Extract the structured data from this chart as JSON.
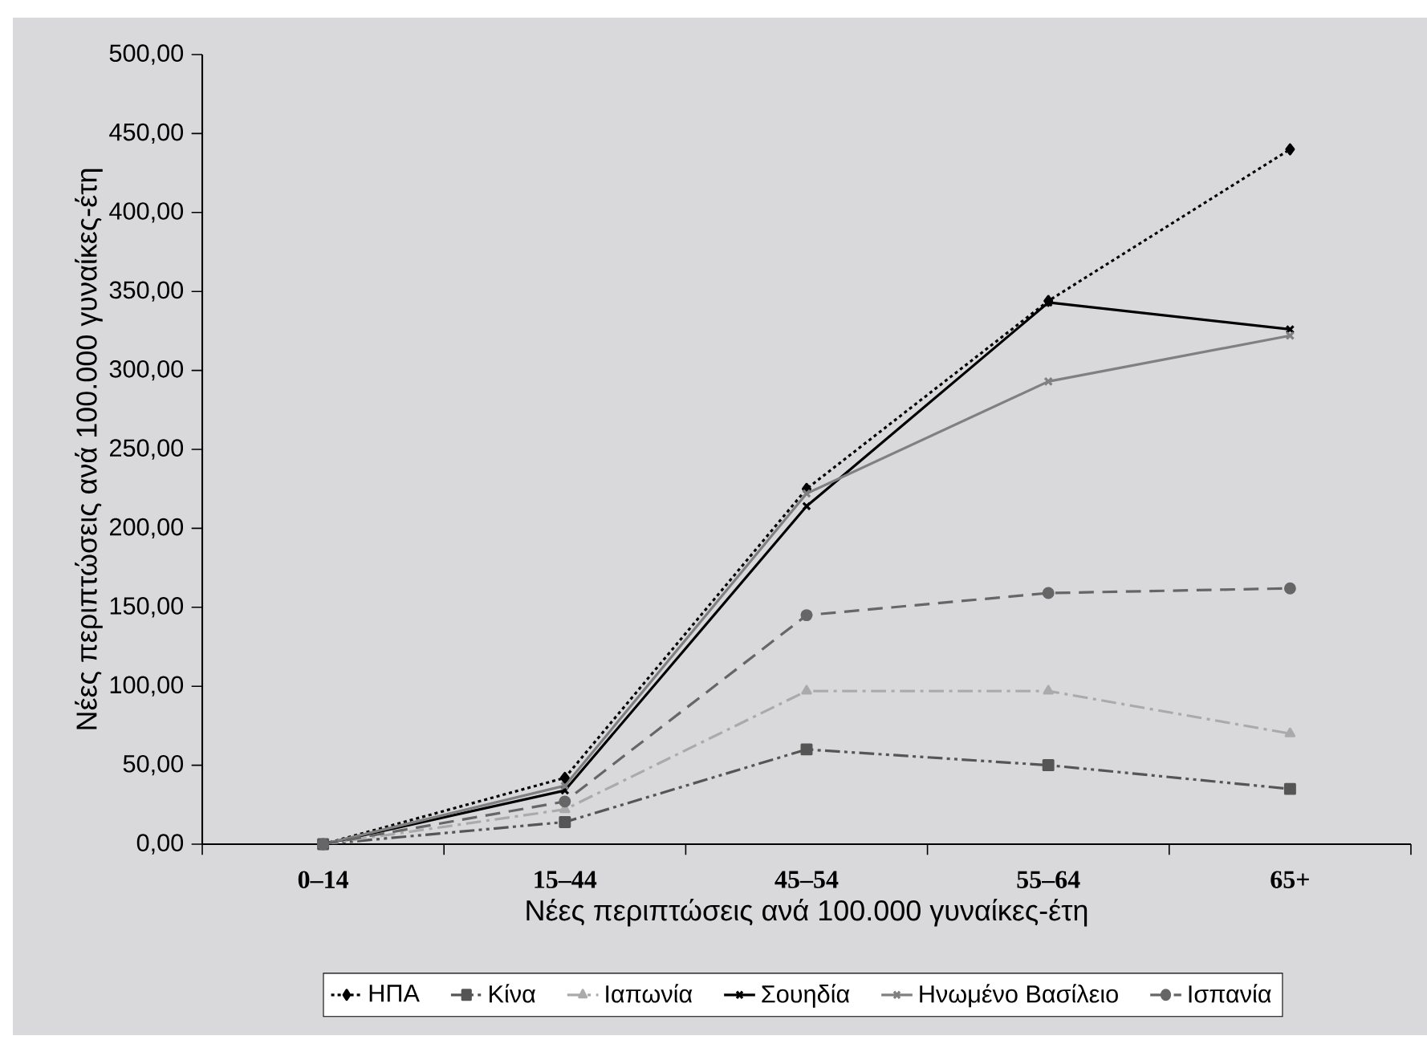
{
  "chart_data": {
    "type": "line",
    "xlabel": "Νέες περιπτώσεις ανά 100.000 γυναίκες-έτη",
    "ylabel": "Νέες περιπτώσεις ανά 100.000 γυναίκες-έτη",
    "categories": [
      "0–14",
      "15–44",
      "45–54",
      "55–64",
      "65+"
    ],
    "ylim": [
      0,
      500
    ],
    "yticks": [
      {
        "value": 0,
        "label": "0,00"
      },
      {
        "value": 50,
        "label": "50,00"
      },
      {
        "value": 100,
        "label": "100,00"
      },
      {
        "value": 150,
        "label": "150,00"
      },
      {
        "value": 200,
        "label": "200,00"
      },
      {
        "value": 250,
        "label": "250,00"
      },
      {
        "value": 300,
        "label": "300,00"
      },
      {
        "value": 350,
        "label": "350,00"
      },
      {
        "value": 400,
        "label": "400,00"
      },
      {
        "value": 450,
        "label": "450,00"
      },
      {
        "value": 500,
        "label": "500,00"
      }
    ],
    "grid": false,
    "legend": "bottom",
    "series": [
      {
        "name": "ΗΠΑ",
        "color": "#000000",
        "marker": "diamond",
        "line_style": "dotted",
        "values": [
          0,
          42,
          225,
          344,
          440
        ]
      },
      {
        "name": "Κίνα",
        "color": "#555555",
        "marker": "square",
        "line_style": "dashdotdot",
        "values": [
          0,
          14,
          60,
          50,
          35
        ]
      },
      {
        "name": "Ιαπωνία",
        "color": "#aaaaaa",
        "marker": "triangle",
        "line_style": "dashdot",
        "values": [
          0,
          22,
          97,
          97,
          70
        ]
      },
      {
        "name": "Σουηδία",
        "color": "#000000",
        "marker": "cross",
        "line_style": "solid",
        "values": [
          0,
          34,
          214,
          343,
          326
        ]
      },
      {
        "name": "Ηνωμένο Βασίλειο",
        "color": "#808080",
        "marker": "cross",
        "line_style": "solid",
        "values": [
          0,
          37,
          222,
          293,
          322
        ]
      },
      {
        "name": "Ισπανία",
        "color": "#666666",
        "marker": "circle",
        "line_style": "dashed",
        "values": [
          0,
          27,
          145,
          159,
          162
        ]
      }
    ]
  }
}
